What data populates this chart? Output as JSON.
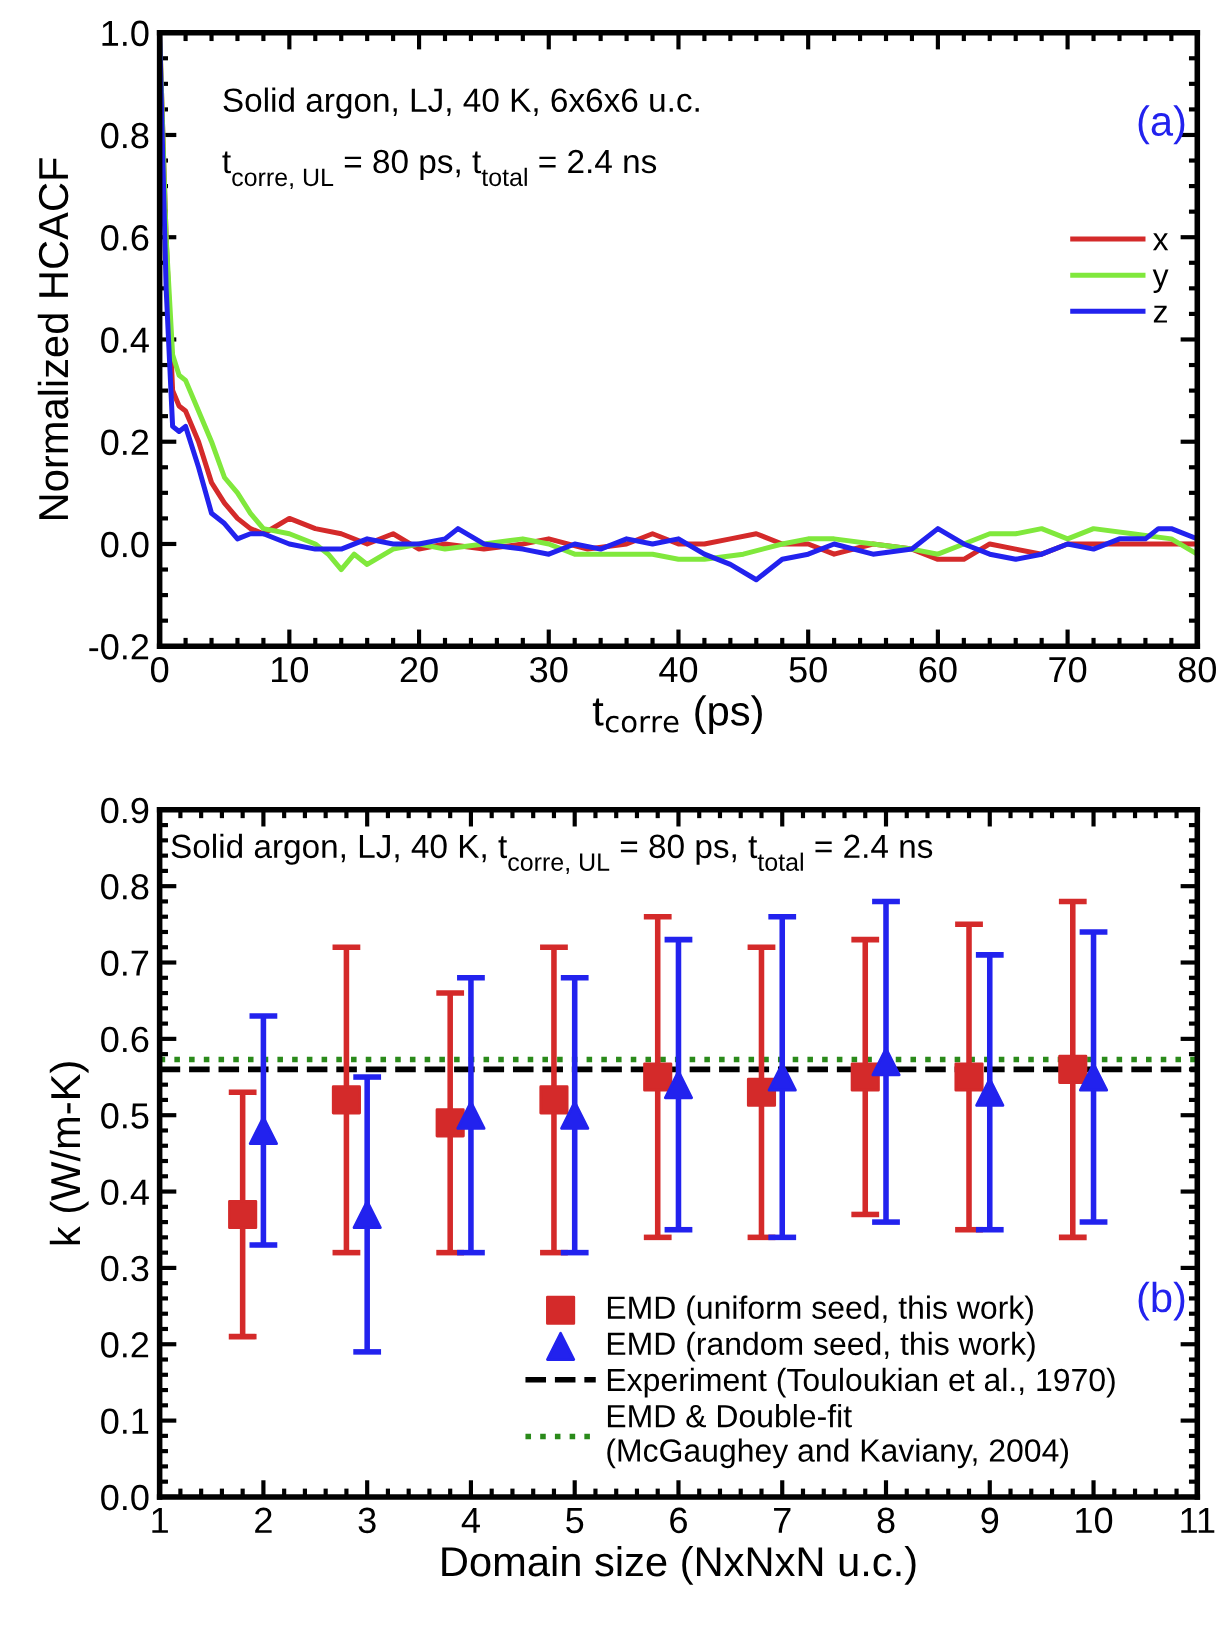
{
  "chart_data": [
    {
      "type": "line",
      "title": "(a)",
      "xlabel": "t$_{corre}$ (ps)",
      "ylabel": "Normalized HCACF",
      "annotations": [
        "Solid argon, LJ, 40 K, 6x6x6 u.c.",
        "t$_{corre, UL}$ = 80 ps, t$_{total}$ = 2.4 ns"
      ],
      "xlim": [
        0,
        80
      ],
      "xticks": [
        0,
        10,
        20,
        30,
        40,
        50,
        60,
        70,
        80
      ],
      "ylim": [
        -0.2,
        1.0
      ],
      "yticks": [
        {
          "value": -0.2,
          "label": "-0.2"
        },
        {
          "value": 0.0,
          "label": "0.0"
        },
        0.2,
        0.4,
        0.6,
        0.8,
        {
          "value": 1.0,
          "label": "1.0"
        }
      ],
      "legend": "right",
      "grid": false,
      "marker": "none",
      "line_style": "solid",
      "series": [
        {
          "name": "x",
          "color": "#d42a2a",
          "x": [
            0,
            0.5,
            1,
            1.5,
            2,
            3,
            4,
            5,
            6,
            7,
            8,
            10,
            12,
            14,
            16,
            18,
            20,
            22,
            25,
            28,
            30,
            33,
            36,
            38,
            40,
            42,
            44,
            46,
            48,
            50,
            52,
            55,
            58,
            60,
            62,
            64,
            66,
            68,
            70,
            72,
            75,
            78,
            80
          ],
          "values": [
            1.0,
            0.6,
            0.3,
            0.27,
            0.26,
            0.2,
            0.12,
            0.08,
            0.05,
            0.03,
            0.02,
            0.05,
            0.03,
            0.02,
            0.0,
            0.02,
            -0.01,
            0.0,
            -0.01,
            0.0,
            0.01,
            -0.01,
            0.0,
            0.02,
            0.0,
            0.0,
            0.01,
            0.02,
            0.0,
            0.0,
            -0.02,
            0.0,
            -0.01,
            -0.03,
            -0.03,
            0.0,
            -0.01,
            -0.02,
            0.0,
            0.0,
            0.0,
            0.0,
            0.0
          ]
        },
        {
          "name": "y",
          "color": "#80e83c",
          "x": [
            0,
            0.5,
            1,
            1.5,
            2,
            3,
            4,
            5,
            6,
            7,
            8,
            10,
            12,
            13,
            14,
            15,
            16,
            18,
            20,
            22,
            25,
            28,
            30,
            32,
            35,
            38,
            40,
            42,
            45,
            48,
            50,
            52,
            55,
            58,
            60,
            62,
            64,
            66,
            68,
            70,
            72,
            75,
            78,
            80
          ],
          "values": [
            1.0,
            0.6,
            0.37,
            0.33,
            0.32,
            0.26,
            0.2,
            0.13,
            0.1,
            0.06,
            0.03,
            0.02,
            0.0,
            -0.02,
            -0.05,
            -0.02,
            -0.04,
            -0.01,
            0.0,
            -0.01,
            0.0,
            0.01,
            0.0,
            -0.02,
            -0.02,
            -0.02,
            -0.03,
            -0.03,
            -0.02,
            0.0,
            0.01,
            0.01,
            0.0,
            -0.01,
            -0.02,
            0.0,
            0.02,
            0.02,
            0.03,
            0.01,
            0.03,
            0.02,
            0.01,
            -0.02
          ]
        },
        {
          "name": "z",
          "color": "#2222ee",
          "x": [
            0,
            0.5,
            1,
            1.5,
            2,
            3,
            4,
            5,
            6,
            7,
            8,
            10,
            12,
            14,
            16,
            18,
            20,
            22,
            23,
            25,
            28,
            30,
            32,
            34,
            36,
            38,
            40,
            42,
            44,
            46,
            48,
            50,
            52,
            55,
            58,
            60,
            62,
            64,
            66,
            68,
            70,
            72,
            74,
            76,
            77,
            78,
            80
          ],
          "values": [
            1.0,
            0.5,
            0.23,
            0.22,
            0.23,
            0.15,
            0.06,
            0.04,
            0.01,
            0.02,
            0.02,
            0.0,
            -0.01,
            -0.01,
            0.01,
            0.0,
            0.0,
            0.01,
            0.03,
            0.0,
            -0.01,
            -0.02,
            0.0,
            -0.01,
            0.01,
            0.0,
            0.01,
            -0.02,
            -0.04,
            -0.07,
            -0.03,
            -0.02,
            0.0,
            -0.02,
            -0.01,
            0.03,
            0.0,
            -0.02,
            -0.03,
            -0.02,
            0.0,
            -0.01,
            0.01,
            0.01,
            0.03,
            0.03,
            0.01
          ]
        }
      ]
    },
    {
      "type": "scatter",
      "title": "(b)",
      "xlabel": "Domain size (NxNxN u.c.)",
      "ylabel": "k (W/m-K)",
      "annotations": [
        "Solid argon, LJ, 40 K, t$_{corre, UL}$ = 80 ps, t$_{total}$ = 2.4 ns"
      ],
      "xlim": [
        1,
        11
      ],
      "xticks": [
        1,
        2,
        3,
        4,
        5,
        6,
        7,
        8,
        9,
        10,
        11
      ],
      "ylim": [
        0,
        0.9
      ],
      "yticks": [
        {
          "value": 0,
          "label": "0.0"
        },
        0.1,
        0.2,
        0.3,
        0.4,
        0.5,
        0.6,
        0.7,
        0.8,
        0.9
      ],
      "legend": "bottom right",
      "grid": false,
      "series": [
        {
          "name": "EMD (uniform seed, this work)",
          "color": "#d42a2a",
          "marker": "square",
          "x": [
            1.8,
            2.8,
            3.8,
            4.8,
            5.8,
            6.8,
            7.8,
            8.8,
            9.8
          ],
          "values": [
            0.37,
            0.52,
            0.49,
            0.52,
            0.55,
            0.53,
            0.55,
            0.55,
            0.56
          ],
          "errors": [
            [
              0.21,
              0.53
            ],
            [
              0.32,
              0.72
            ],
            [
              0.32,
              0.66
            ],
            [
              0.32,
              0.72
            ],
            [
              0.34,
              0.76
            ],
            [
              0.34,
              0.72
            ],
            [
              0.37,
              0.73
            ],
            [
              0.35,
              0.75
            ],
            [
              0.34,
              0.78
            ]
          ]
        },
        {
          "name": "EMD (random seed, this work)",
          "color": "#2222ee",
          "marker": "triangle",
          "x": [
            2,
            3,
            4,
            5,
            6,
            7,
            8,
            9,
            10
          ],
          "values": [
            0.48,
            0.37,
            0.5,
            0.5,
            0.54,
            0.55,
            0.57,
            0.53,
            0.55
          ],
          "errors": [
            [
              0.33,
              0.63
            ],
            [
              0.19,
              0.55
            ],
            [
              0.32,
              0.68
            ],
            [
              0.32,
              0.68
            ],
            [
              0.35,
              0.73
            ],
            [
              0.34,
              0.76
            ],
            [
              0.36,
              0.78
            ],
            [
              0.35,
              0.71
            ],
            [
              0.36,
              0.74
            ]
          ]
        }
      ],
      "ref_lines": [
        {
          "axis": "y",
          "value": 0.56,
          "label": "Experiment (Touloukian et al., 1970)",
          "color": "#000000",
          "line_style": "dashed"
        },
        {
          "axis": "y",
          "value": 0.573,
          "label": "EMD & Double-fit\n(McGaughey and Kaviany, 2004)",
          "color": "#2a8a1a",
          "line_style": "dotted"
        }
      ]
    }
  ]
}
